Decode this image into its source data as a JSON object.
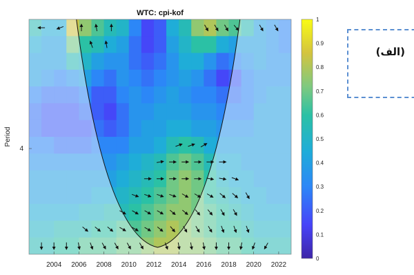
{
  "chart_data": {
    "type": "heatmap",
    "title": "WTC: cpi-kof",
    "xlabel": "",
    "ylabel": "Period",
    "x_ticks": [
      "2004",
      "2006",
      "2008",
      "2010",
      "2012",
      "2014",
      "2016",
      "2018",
      "2020",
      "2022"
    ],
    "x_range": [
      2002,
      2023
    ],
    "y_ticks": [
      "4"
    ],
    "colorbar": {
      "ticks": [
        "1",
        "0.9",
        "0.8",
        "0.7",
        "0.6",
        "0.5",
        "0.4",
        "0.3",
        "0.2",
        "0.1",
        "0"
      ],
      "range": [
        0,
        1
      ],
      "colormap": [
        "#3e26a8",
        "#4743f8",
        "#2c87f7",
        "#1fadd8",
        "#2bc1a5",
        "#7fc97f",
        "#d4c43f",
        "#f9fb15"
      ]
    },
    "coherence_grid": {
      "rows_top_to_bottom": 14,
      "cols_left_to_right": 21,
      "values": [
        [
          0.55,
          0.45,
          0.45,
          0.85,
          0.75,
          0.65,
          0.55,
          0.5,
          0.3,
          0.15,
          0.2,
          0.45,
          0.55,
          0.75,
          0.8,
          0.7,
          0.65,
          0.55,
          0.4,
          0.35,
          0.3
        ],
        [
          0.45,
          0.4,
          0.4,
          0.7,
          0.6,
          0.55,
          0.45,
          0.4,
          0.25,
          0.15,
          0.2,
          0.4,
          0.5,
          0.6,
          0.6,
          0.45,
          0.4,
          0.4,
          0.4,
          0.35,
          0.3
        ],
        [
          0.4,
          0.4,
          0.4,
          0.55,
          0.5,
          0.4,
          0.35,
          0.35,
          0.25,
          0.2,
          0.25,
          0.35,
          0.45,
          0.45,
          0.35,
          0.25,
          0.3,
          0.35,
          0.4,
          0.35,
          0.35
        ],
        [
          0.4,
          0.35,
          0.3,
          0.35,
          0.4,
          0.3,
          0.25,
          0.35,
          0.3,
          0.25,
          0.3,
          0.35,
          0.4,
          0.35,
          0.25,
          0.15,
          0.2,
          0.3,
          0.35,
          0.35,
          0.35
        ],
        [
          0.3,
          0.25,
          0.25,
          0.25,
          0.3,
          0.2,
          0.2,
          0.3,
          0.35,
          0.3,
          0.35,
          0.4,
          0.35,
          0.3,
          0.3,
          0.25,
          0.25,
          0.3,
          0.35,
          0.4,
          0.4
        ],
        [
          0.25,
          0.2,
          0.2,
          0.2,
          0.25,
          0.2,
          0.15,
          0.25,
          0.35,
          0.35,
          0.4,
          0.4,
          0.4,
          0.35,
          0.35,
          0.3,
          0.3,
          0.3,
          0.4,
          0.4,
          0.4
        ],
        [
          0.25,
          0.2,
          0.2,
          0.2,
          0.2,
          0.25,
          0.2,
          0.25,
          0.35,
          0.4,
          0.4,
          0.45,
          0.45,
          0.4,
          0.4,
          0.35,
          0.35,
          0.35,
          0.4,
          0.4,
          0.4
        ],
        [
          0.3,
          0.3,
          0.25,
          0.25,
          0.25,
          0.3,
          0.3,
          0.3,
          0.4,
          0.4,
          0.45,
          0.55,
          0.6,
          0.55,
          0.45,
          0.4,
          0.4,
          0.4,
          0.4,
          0.4,
          0.4
        ],
        [
          0.35,
          0.35,
          0.35,
          0.35,
          0.35,
          0.35,
          0.35,
          0.4,
          0.45,
          0.5,
          0.55,
          0.65,
          0.7,
          0.65,
          0.55,
          0.45,
          0.45,
          0.4,
          0.4,
          0.4,
          0.4
        ],
        [
          0.4,
          0.4,
          0.4,
          0.4,
          0.4,
          0.4,
          0.4,
          0.45,
          0.5,
          0.55,
          0.6,
          0.7,
          0.75,
          0.7,
          0.6,
          0.5,
          0.45,
          0.45,
          0.4,
          0.4,
          0.4
        ],
        [
          0.4,
          0.4,
          0.4,
          0.4,
          0.4,
          0.45,
          0.45,
          0.5,
          0.55,
          0.6,
          0.65,
          0.7,
          0.75,
          0.7,
          0.6,
          0.55,
          0.5,
          0.45,
          0.45,
          0.4,
          0.4
        ],
        [
          0.45,
          0.45,
          0.45,
          0.45,
          0.5,
          0.5,
          0.55,
          0.55,
          0.6,
          0.65,
          0.7,
          0.75,
          0.75,
          0.7,
          0.65,
          0.6,
          0.55,
          0.5,
          0.45,
          0.45,
          0.45
        ],
        [
          0.5,
          0.5,
          0.55,
          0.55,
          0.55,
          0.6,
          0.6,
          0.65,
          0.65,
          0.7,
          0.75,
          0.8,
          0.75,
          0.7,
          0.65,
          0.6,
          0.6,
          0.55,
          0.5,
          0.5,
          0.5
        ],
        [
          0.55,
          0.55,
          0.6,
          0.6,
          0.65,
          0.65,
          0.65,
          0.7,
          0.7,
          0.75,
          0.8,
          0.8,
          0.75,
          0.75,
          0.7,
          0.65,
          0.65,
          0.6,
          0.55,
          0.55,
          0.55
        ]
      ]
    },
    "cone_of_influence": {
      "peak_year": 2012.3,
      "left_top_year": 2005.8,
      "right_top_year": 2018.9
    },
    "phase_arrows": [
      {
        "year": 2003.0,
        "row": 0,
        "angle": 180
      },
      {
        "year": 2004.5,
        "row": 0,
        "angle": 200
      },
      {
        "year": 2006.2,
        "row": 0,
        "angle": 90
      },
      {
        "year": 2007.4,
        "row": 0,
        "angle": 100
      },
      {
        "year": 2008.6,
        "row": 0,
        "angle": 90
      },
      {
        "year": 2007.0,
        "row": 1,
        "angle": 110
      },
      {
        "year": 2008.2,
        "row": 1,
        "angle": 100
      },
      {
        "year": 2016.2,
        "row": 0,
        "angle": 300
      },
      {
        "year": 2017.0,
        "row": 0,
        "angle": 300
      },
      {
        "year": 2017.8,
        "row": 0,
        "angle": 300
      },
      {
        "year": 2018.6,
        "row": 0,
        "angle": 310
      },
      {
        "year": 2020.6,
        "row": 0,
        "angle": 300
      },
      {
        "year": 2021.8,
        "row": 0,
        "angle": 300
      },
      {
        "year": 2014.0,
        "row": 7,
        "angle": 20
      },
      {
        "year": 2015.0,
        "row": 7,
        "angle": 20
      },
      {
        "year": 2016.0,
        "row": 7,
        "angle": 30
      },
      {
        "year": 2012.5,
        "row": 8,
        "angle": 10
      },
      {
        "year": 2013.5,
        "row": 8,
        "angle": 0
      },
      {
        "year": 2014.5,
        "row": 8,
        "angle": 0
      },
      {
        "year": 2015.5,
        "row": 8,
        "angle": 0
      },
      {
        "year": 2016.5,
        "row": 8,
        "angle": 0
      },
      {
        "year": 2017.5,
        "row": 8,
        "angle": 0
      },
      {
        "year": 2011.5,
        "row": 9,
        "angle": 0
      },
      {
        "year": 2012.5,
        "row": 9,
        "angle": 0
      },
      {
        "year": 2013.5,
        "row": 9,
        "angle": 0
      },
      {
        "year": 2014.5,
        "row": 9,
        "angle": 0
      },
      {
        "year": 2015.5,
        "row": 9,
        "angle": 0
      },
      {
        "year": 2016.5,
        "row": 9,
        "angle": 350
      },
      {
        "year": 2017.5,
        "row": 9,
        "angle": 350
      },
      {
        "year": 2018.5,
        "row": 9,
        "angle": 340
      },
      {
        "year": 2010.5,
        "row": 10,
        "angle": 340
      },
      {
        "year": 2011.5,
        "row": 10,
        "angle": 340
      },
      {
        "year": 2012.5,
        "row": 10,
        "angle": 340
      },
      {
        "year": 2013.5,
        "row": 10,
        "angle": 340
      },
      {
        "year": 2014.5,
        "row": 10,
        "angle": 330
      },
      {
        "year": 2015.5,
        "row": 10,
        "angle": 330
      },
      {
        "year": 2016.5,
        "row": 10,
        "angle": 330
      },
      {
        "year": 2017.5,
        "row": 10,
        "angle": 320
      },
      {
        "year": 2018.5,
        "row": 10,
        "angle": 320
      },
      {
        "year": 2019.5,
        "row": 10,
        "angle": 300
      },
      {
        "year": 2009.5,
        "row": 11,
        "angle": 330
      },
      {
        "year": 2010.5,
        "row": 11,
        "angle": 330
      },
      {
        "year": 2011.5,
        "row": 11,
        "angle": 330
      },
      {
        "year": 2012.5,
        "row": 11,
        "angle": 330
      },
      {
        "year": 2013.5,
        "row": 11,
        "angle": 320
      },
      {
        "year": 2014.5,
        "row": 11,
        "angle": 320
      },
      {
        "year": 2015.5,
        "row": 11,
        "angle": 310
      },
      {
        "year": 2016.5,
        "row": 11,
        "angle": 310
      },
      {
        "year": 2017.5,
        "row": 11,
        "angle": 300
      },
      {
        "year": 2018.5,
        "row": 11,
        "angle": 300
      },
      {
        "year": 2006.5,
        "row": 12,
        "angle": 320
      },
      {
        "year": 2007.5,
        "row": 12,
        "angle": 320
      },
      {
        "year": 2008.5,
        "row": 12,
        "angle": 320
      },
      {
        "year": 2009.5,
        "row": 12,
        "angle": 330
      },
      {
        "year": 2010.5,
        "row": 12,
        "angle": 330
      },
      {
        "year": 2011.5,
        "row": 12,
        "angle": 330
      },
      {
        "year": 2012.5,
        "row": 12,
        "angle": 320
      },
      {
        "year": 2013.5,
        "row": 12,
        "angle": 310
      },
      {
        "year": 2014.5,
        "row": 12,
        "angle": 300
      },
      {
        "year": 2015.5,
        "row": 12,
        "angle": 300
      },
      {
        "year": 2016.5,
        "row": 12,
        "angle": 300
      },
      {
        "year": 2017.5,
        "row": 12,
        "angle": 290
      },
      {
        "year": 2018.5,
        "row": 12,
        "angle": 290
      },
      {
        "year": 2019.5,
        "row": 12,
        "angle": 290
      },
      {
        "year": 2003.0,
        "row": 13,
        "angle": 270
      },
      {
        "year": 2004.0,
        "row": 13,
        "angle": 270
      },
      {
        "year": 2005.0,
        "row": 13,
        "angle": 270
      },
      {
        "year": 2006.0,
        "row": 13,
        "angle": 280
      },
      {
        "year": 2007.0,
        "row": 13,
        "angle": 290
      },
      {
        "year": 2008.0,
        "row": 13,
        "angle": 300
      },
      {
        "year": 2009.0,
        "row": 13,
        "angle": 300
      },
      {
        "year": 2010.0,
        "row": 13,
        "angle": 300
      },
      {
        "year": 2011.0,
        "row": 13,
        "angle": 300
      },
      {
        "year": 2013.0,
        "row": 13,
        "angle": 290
      },
      {
        "year": 2014.0,
        "row": 13,
        "angle": 280
      },
      {
        "year": 2015.0,
        "row": 13,
        "angle": 280
      },
      {
        "year": 2016.0,
        "row": 13,
        "angle": 280
      },
      {
        "year": 2017.0,
        "row": 13,
        "angle": 270
      },
      {
        "year": 2018.0,
        "row": 13,
        "angle": 270
      },
      {
        "year": 2019.0,
        "row": 13,
        "angle": 260
      },
      {
        "year": 2020.0,
        "row": 13,
        "angle": 250
      },
      {
        "year": 2021.0,
        "row": 13,
        "angle": 240
      }
    ]
  },
  "panel_label": "(الف)"
}
